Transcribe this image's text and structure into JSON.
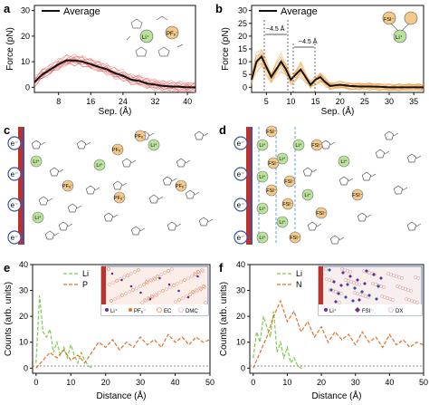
{
  "panels": {
    "a": {
      "label": "a",
      "legend": "Average",
      "ylabel": "Force (pN)",
      "xlabel": "Sep. (Å)",
      "xticks": [
        "8",
        "16",
        "24",
        "32",
        "40"
      ],
      "yticks": [
        "0",
        "10",
        "20",
        "30"
      ],
      "species": [
        "Li⁺",
        "PF₆⁻"
      ]
    },
    "b": {
      "label": "b",
      "legend": "Average",
      "ylabel": "Force (pN)",
      "xlabel": "Sep. (Å)",
      "xticks": [
        "5",
        "10",
        "15",
        "20",
        "25",
        "30",
        "35"
      ],
      "yticks": [
        "0",
        "5",
        "10",
        "15",
        "20",
        "25",
        "30"
      ],
      "annotation1": "~4.5 Å",
      "annotation2": "~4.5 Å",
      "species": [
        "FSI⁻",
        "Li⁺"
      ]
    },
    "c": {
      "label": "c",
      "electron": "e⁻",
      "ion_li": "Li⁺",
      "ion_pf": "PF₆⁻"
    },
    "d": {
      "label": "d",
      "electron": "e⁻",
      "ion_li": "Li⁺",
      "ion_fsi": "FSI⁻"
    },
    "e": {
      "label": "e",
      "ylabel": "Counts (arb. units)",
      "xlabel": "Distance (Å)",
      "legend": [
        "Li",
        "P"
      ],
      "xticks": [
        "0",
        "10",
        "20",
        "30",
        "40",
        "50"
      ],
      "yticks": [
        "0",
        "10",
        "20",
        "30",
        "40"
      ],
      "inset_labels": [
        "Li⁺",
        "PF₆⁻",
        "EC",
        "DMC"
      ]
    },
    "f": {
      "label": "f",
      "ylabel": "Counts (arb. units)",
      "xlabel": "Distance (Å)",
      "legend": [
        "Li",
        "N"
      ],
      "xticks": [
        "0",
        "10",
        "20",
        "30",
        "40",
        "50"
      ],
      "yticks": [
        "0",
        "10",
        "20",
        "30",
        "40"
      ],
      "inset_labels": [
        "Li⁺",
        "FSI⁻",
        "DX"
      ]
    }
  },
  "colors": {
    "black": "#111111",
    "red_trace": "#e05050",
    "orange_trace": "#f0a040",
    "li_green": "#7dcb4f",
    "p_orange": "#e0712a",
    "electrode_red": "#c0302a",
    "ion_circle": "#f3c98a",
    "li_circle": "#b9e39a"
  },
  "chart_data": [
    {
      "type": "line",
      "title": "",
      "xlabel": "Sep. (Å)",
      "ylabel": "Force (pN)",
      "xlim": [
        2,
        42
      ],
      "ylim": [
        -2,
        32
      ],
      "series": [
        {
          "name": "Average",
          "x": [
            2,
            4,
            6,
            8,
            10,
            12,
            14,
            16,
            18,
            20,
            22,
            24,
            26,
            28,
            30,
            32,
            34,
            36,
            38,
            40,
            42
          ],
          "values": [
            2,
            5,
            7,
            9,
            10.5,
            10.5,
            10,
            9,
            8,
            7,
            5.5,
            4.5,
            3,
            2.5,
            1.5,
            1,
            0.5,
            0.3,
            0.2,
            0,
            0
          ]
        }
      ]
    },
    {
      "type": "line",
      "title": "",
      "xlabel": "Sep. (Å)",
      "ylabel": "Force (pN)",
      "xlim": [
        2,
        37
      ],
      "ylim": [
        -2,
        32
      ],
      "series": [
        {
          "name": "Average",
          "x": [
            2,
            3,
            4,
            5,
            6,
            7,
            8,
            9,
            10,
            11,
            12,
            13,
            14,
            15,
            16,
            17,
            18,
            20,
            22,
            24,
            26,
            28,
            30,
            32,
            34,
            36,
            37
          ],
          "values": [
            3,
            10,
            12,
            8,
            4,
            7,
            10,
            7,
            3,
            5,
            7,
            4,
            1,
            3,
            4,
            2,
            0.5,
            1,
            0.5,
            0.3,
            0.3,
            0.2,
            0,
            0,
            0,
            0,
            0
          ]
        }
      ]
    },
    {
      "type": "line",
      "title": "",
      "xlabel": "Distance (Å)",
      "ylabel": "Counts (arb. units)",
      "xlim": [
        -1,
        50
      ],
      "ylim": [
        -2,
        40
      ],
      "series": [
        {
          "name": "Li",
          "x": [
            0,
            1,
            2,
            3,
            4,
            5,
            6,
            7,
            8,
            9,
            10,
            11,
            12,
            13,
            14,
            15,
            16
          ],
          "values": [
            2,
            28,
            14,
            12,
            15,
            6,
            10,
            5,
            8,
            4,
            9,
            5,
            2,
            6,
            3,
            1,
            0
          ]
        },
        {
          "name": "P",
          "x": [
            0,
            2,
            4,
            6,
            8,
            10,
            12,
            14,
            16,
            18,
            20,
            22,
            24,
            26,
            28,
            30,
            32,
            34,
            36,
            38,
            40,
            42,
            44,
            46,
            48,
            50
          ],
          "values": [
            0,
            3,
            6,
            4,
            7,
            3,
            5,
            2,
            6,
            10,
            8,
            11,
            7,
            10,
            8,
            12,
            9,
            11,
            8,
            13,
            10,
            12,
            9,
            12,
            10,
            11
          ]
        }
      ]
    },
    {
      "type": "line",
      "title": "",
      "xlabel": "Distance (Å)",
      "ylabel": "Counts (arb. units)",
      "xlim": [
        -1,
        50
      ],
      "ylim": [
        -2,
        40
      ],
      "series": [
        {
          "name": "Li",
          "x": [
            0,
            1,
            2,
            3,
            4,
            5,
            6,
            7,
            8,
            9,
            10,
            11,
            12,
            13,
            14,
            15
          ],
          "values": [
            4,
            14,
            10,
            20,
            16,
            12,
            22,
            6,
            10,
            4,
            8,
            2,
            4,
            1,
            0,
            0
          ]
        },
        {
          "name": "N",
          "x": [
            0,
            2,
            4,
            6,
            8,
            10,
            12,
            14,
            16,
            18,
            20,
            22,
            24,
            26,
            28,
            30,
            32,
            34,
            36,
            38,
            40,
            42,
            44,
            46,
            48,
            50
          ],
          "values": [
            0,
            6,
            12,
            20,
            26,
            18,
            22,
            14,
            18,
            12,
            16,
            10,
            14,
            11,
            13,
            9,
            14,
            10,
            12,
            8,
            13,
            9,
            11,
            8,
            10,
            9
          ]
        }
      ]
    }
  ]
}
